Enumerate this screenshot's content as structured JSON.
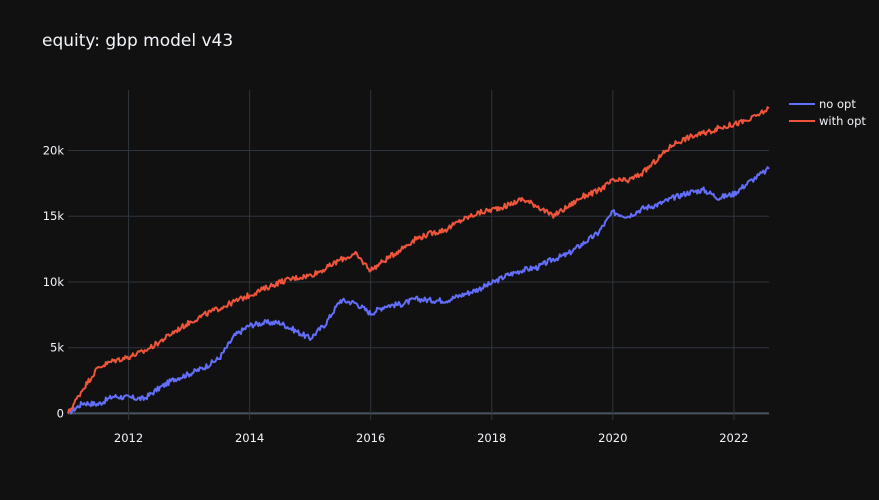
{
  "chart_data": {
    "type": "line",
    "title": "equity: gbp model v43",
    "xlabel": "",
    "ylabel": "",
    "x_ticks": [
      "2012",
      "2014",
      "2016",
      "2018",
      "2020",
      "2022"
    ],
    "y_ticks": [
      "0",
      "5k",
      "10k",
      "15k",
      "20k"
    ],
    "xlim": [
      2011.0,
      2022.58
    ],
    "ylim": [
      -500,
      24600
    ],
    "grid": true,
    "legend_position": "top-right",
    "background": "#111111",
    "grid_color": "#2e353c",
    "zero_line_color": "#4b5560",
    "text_color": "#f2f5fa",
    "series": [
      {
        "name": "no opt",
        "color": "#636efa",
        "x": [
          2011.0,
          2011.25,
          2011.5,
          2011.75,
          2012.0,
          2012.25,
          2012.5,
          2012.75,
          2013.0,
          2013.25,
          2013.5,
          2013.75,
          2014.0,
          2014.25,
          2014.5,
          2014.75,
          2015.0,
          2015.25,
          2015.5,
          2015.75,
          2016.0,
          2016.25,
          2016.5,
          2016.75,
          2017.0,
          2017.25,
          2017.5,
          2017.75,
          2018.0,
          2018.25,
          2018.5,
          2018.75,
          2019.0,
          2019.25,
          2019.5,
          2019.75,
          2020.0,
          2020.25,
          2020.5,
          2020.75,
          2021.0,
          2021.25,
          2021.5,
          2021.75,
          2022.0,
          2022.25,
          2022.58
        ],
        "y": [
          0,
          800,
          700,
          1300,
          1200,
          1100,
          1900,
          2600,
          3000,
          3500,
          4200,
          5900,
          6700,
          6900,
          6900,
          6300,
          5700,
          6800,
          8600,
          8400,
          7600,
          8200,
          8300,
          8700,
          8600,
          8600,
          9000,
          9400,
          9900,
          10500,
          10900,
          11100,
          11700,
          12100,
          12900,
          13700,
          15300,
          15000,
          15600,
          15900,
          16400,
          16800,
          17000,
          16400,
          16700,
          17600,
          18600
        ]
      },
      {
        "name": "with opt",
        "color": "#ef553b",
        "x": [
          2011.0,
          2011.25,
          2011.5,
          2011.75,
          2012.0,
          2012.25,
          2012.5,
          2012.75,
          2013.0,
          2013.25,
          2013.5,
          2013.75,
          2014.0,
          2014.25,
          2014.5,
          2014.75,
          2015.0,
          2015.25,
          2015.5,
          2015.75,
          2016.0,
          2016.25,
          2016.5,
          2016.75,
          2017.0,
          2017.25,
          2017.5,
          2017.75,
          2018.0,
          2018.25,
          2018.5,
          2018.75,
          2019.0,
          2019.25,
          2019.5,
          2019.75,
          2020.0,
          2020.25,
          2020.5,
          2020.75,
          2021.0,
          2021.25,
          2021.5,
          2021.75,
          2022.0,
          2022.25,
          2022.58
        ],
        "y": [
          0,
          1900,
          3500,
          4000,
          4300,
          4700,
          5400,
          6200,
          6900,
          7500,
          8000,
          8500,
          9000,
          9500,
          10000,
          10300,
          10500,
          11000,
          11700,
          12100,
          10900,
          11700,
          12500,
          13300,
          13700,
          14000,
          14700,
          15200,
          15500,
          15800,
          16300,
          15800,
          15000,
          15700,
          16500,
          16900,
          17700,
          17700,
          18300,
          19400,
          20500,
          21000,
          21300,
          21700,
          22000,
          22300,
          23200
        ]
      }
    ]
  }
}
